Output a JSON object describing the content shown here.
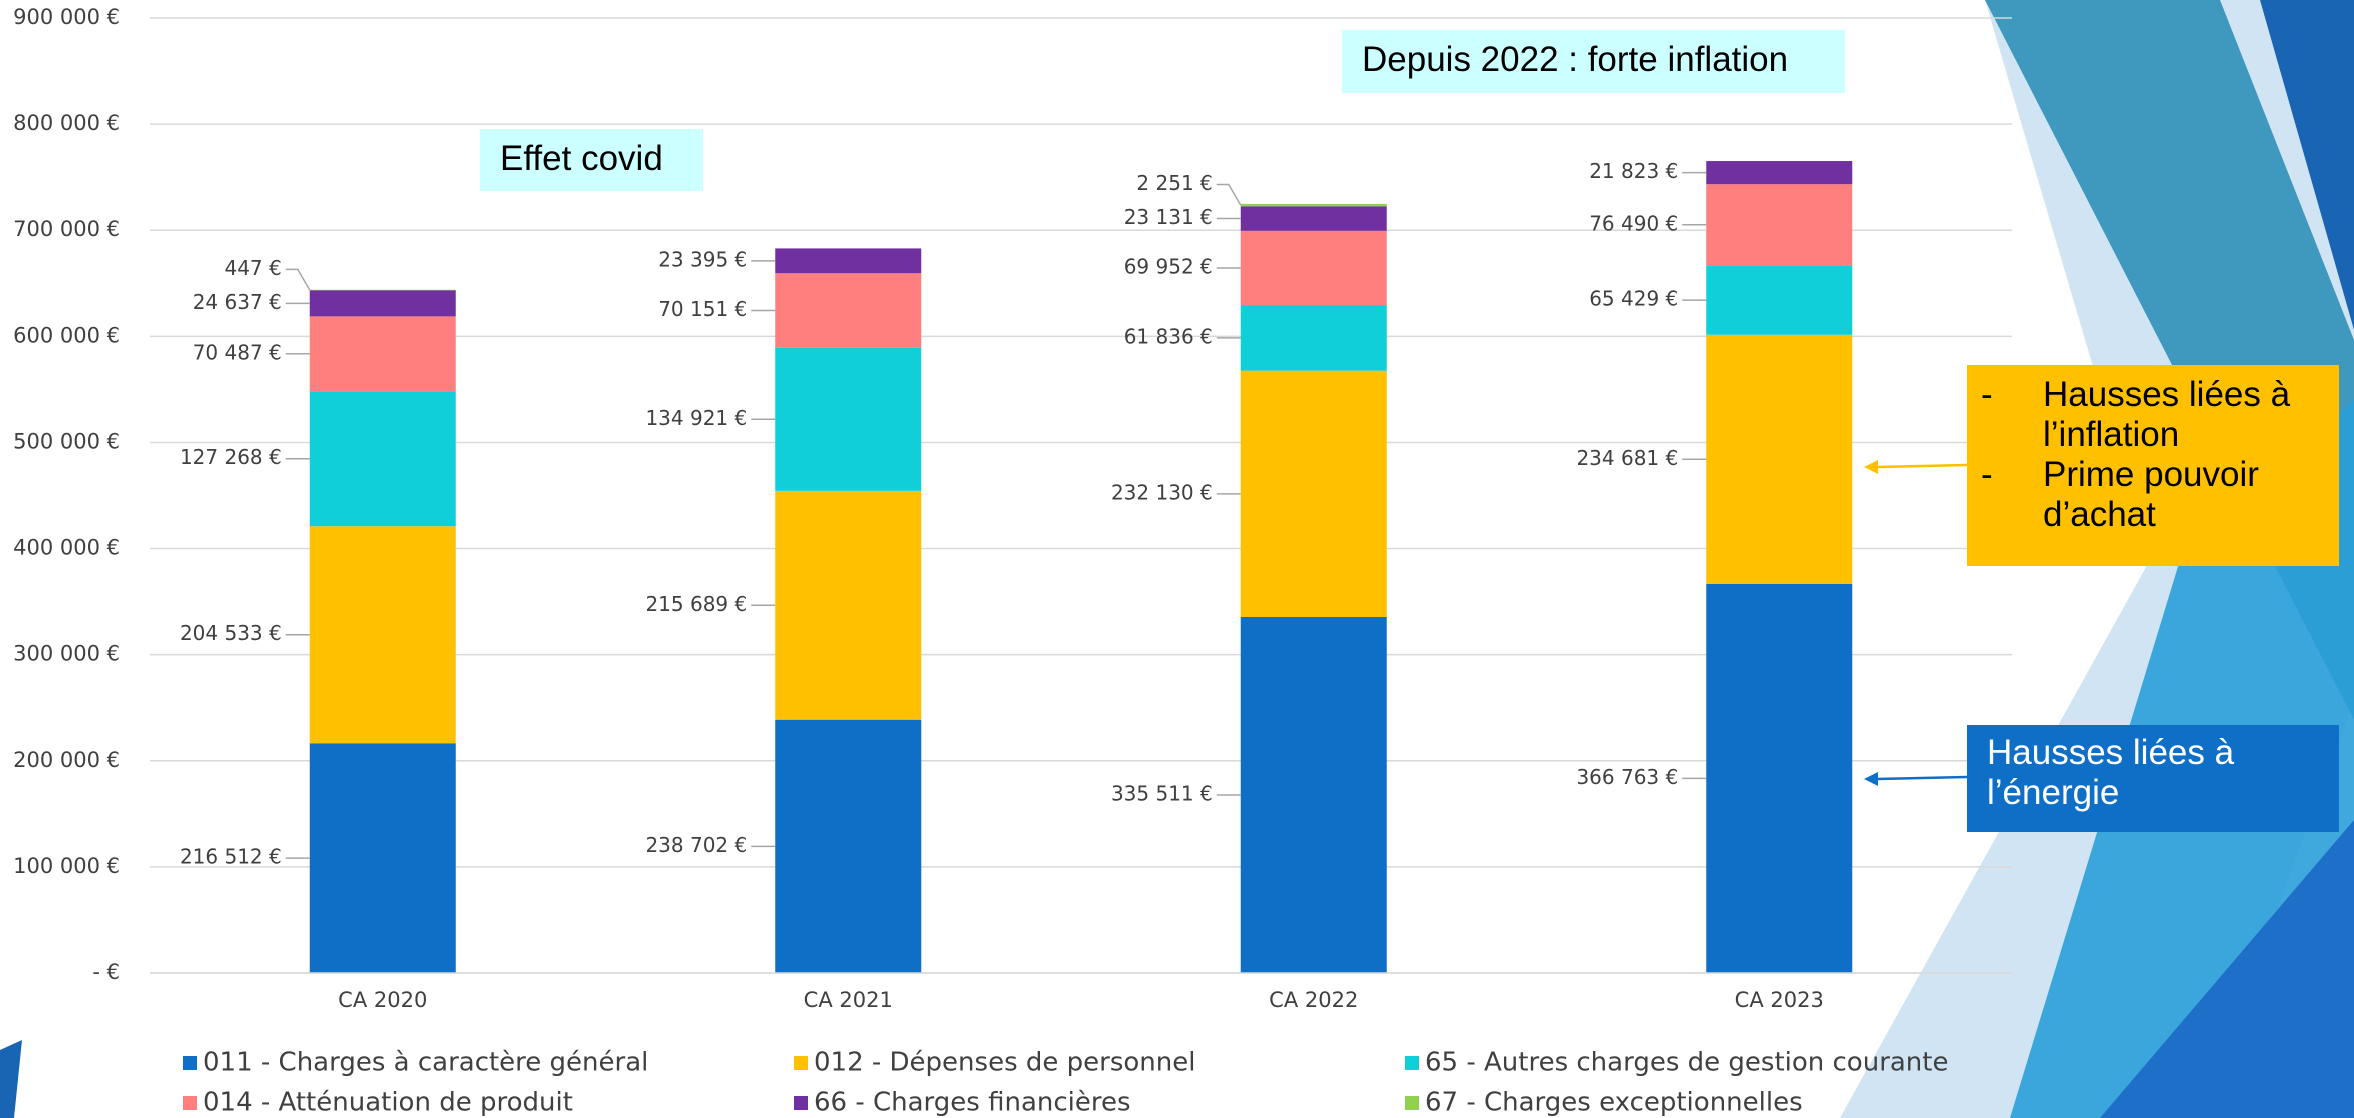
{
  "chart_data": {
    "type": "bar",
    "stacked": true,
    "categories": [
      "CA 2020",
      "CA 2021",
      "CA 2022",
      "CA 2023"
    ],
    "series": [
      {
        "name": "011 - Charges à caractère général",
        "color": "#0f6fc6",
        "values": [
          216512,
          238702,
          335511,
          366763
        ],
        "value_labels": [
          "216 512 €",
          "238 702 €",
          "335 511 €",
          "366 763 €"
        ]
      },
      {
        "name": "012 - Dépenses de personnel",
        "color": "#ffc000",
        "values": [
          204533,
          215689,
          232130,
          234681
        ],
        "value_labels": [
          "204 533 €",
          "215 689 €",
          "232 130 €",
          "234 681 €"
        ]
      },
      {
        "name": "65 - Autres charges de gestion courante",
        "color": "#10cfd9",
        "values": [
          127268,
          134921,
          61836,
          65429
        ],
        "value_labels": [
          "127 268 €",
          "134 921 €",
          "61 836 €",
          "65 429 €"
        ]
      },
      {
        "name": "014 - Atténuation de produit",
        "color": "#ff7f7f",
        "values": [
          70487,
          70151,
          69952,
          76490
        ],
        "value_labels": [
          "70 487 €",
          "70 151 €",
          "69 952 €",
          "76 490 €"
        ]
      },
      {
        "name": "66 - Charges financières",
        "color": "#7030a0",
        "values": [
          24637,
          23395,
          23131,
          21823
        ],
        "value_labels": [
          "24 637 €",
          "23 395 €",
          "23 131 €",
          "21 823 €"
        ]
      },
      {
        "name": "67 - Charges exceptionnelles",
        "color": "#92d050",
        "values": [
          447,
          null,
          2251,
          null
        ],
        "value_labels": [
          "447 €",
          null,
          "2 251 €",
          null
        ]
      }
    ],
    "ylim": [
      0,
      900000
    ],
    "yticks": [
      {
        "value": 0,
        "label": "-   €"
      },
      {
        "value": 100000,
        "label": "100 000 €"
      },
      {
        "value": 200000,
        "label": "200 000 €"
      },
      {
        "value": 300000,
        "label": "300 000 €"
      },
      {
        "value": 400000,
        "label": "400 000 €"
      },
      {
        "value": 500000,
        "label": "500 000 €"
      },
      {
        "value": 600000,
        "label": "600 000 €"
      },
      {
        "value": 700000,
        "label": "700 000 €"
      },
      {
        "value": 800000,
        "label": "800 000 €"
      },
      {
        "value": 900000,
        "label": {
          "value": 900000,
          "label": "900 000 €"
        }
      }
    ],
    "grid": true,
    "legend": "bottom",
    "annotations": [
      {
        "text": "Effet covid"
      },
      {
        "text": "Depuis 2022 : forte inflation"
      },
      {
        "bullet": "-",
        "items": [
          "Hausses liées à l’inflation",
          "Prime pouvoir d’achat"
        ]
      },
      {
        "text": "Hausses liées à l’énergie"
      }
    ]
  }
}
